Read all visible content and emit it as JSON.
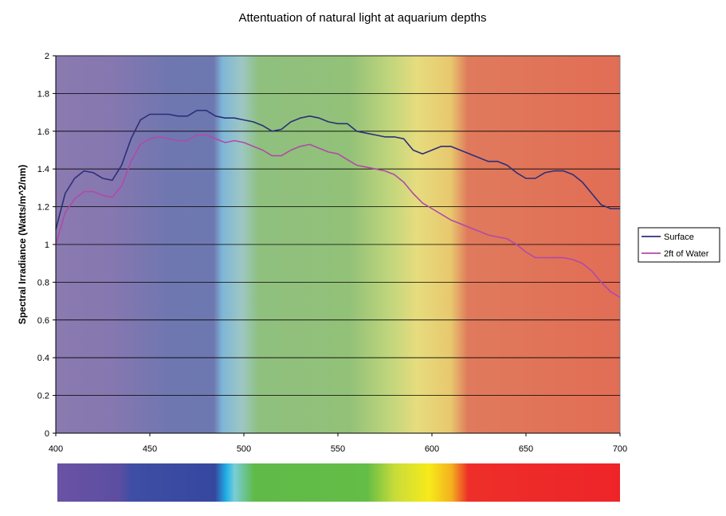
{
  "chart_data": {
    "type": "line",
    "title": "Attentuation of natural light at aquarium depths",
    "xlabel": "",
    "ylabel": "Spectral Irradiance (Watts/m^2/nm)",
    "xlim": [
      400,
      700
    ],
    "ylim": [
      0,
      2
    ],
    "x_ticks": [
      "400",
      "450",
      "500",
      "550",
      "600",
      "650",
      "700"
    ],
    "y_ticks": [
      "0",
      "0.2",
      "0.4",
      "0.6",
      "0.8",
      "1",
      "1.2",
      "1.4",
      "1.6",
      "1.8",
      "2"
    ],
    "grid": "horizontal",
    "legend_position": "right",
    "x": [
      400,
      405,
      410,
      415,
      420,
      425,
      430,
      435,
      440,
      445,
      450,
      455,
      460,
      465,
      470,
      475,
      480,
      485,
      490,
      495,
      500,
      505,
      510,
      515,
      520,
      525,
      530,
      535,
      540,
      545,
      550,
      555,
      560,
      565,
      570,
      575,
      580,
      585,
      590,
      595,
      600,
      605,
      610,
      615,
      620,
      625,
      630,
      635,
      640,
      645,
      650,
      655,
      660,
      665,
      670,
      675,
      680,
      685,
      690,
      695,
      700
    ],
    "series": [
      {
        "name": "Surface",
        "color": "#2b2f7a",
        "values": [
          1.08,
          1.27,
          1.35,
          1.39,
          1.38,
          1.35,
          1.34,
          1.42,
          1.56,
          1.66,
          1.69,
          1.69,
          1.69,
          1.68,
          1.68,
          1.71,
          1.71,
          1.68,
          1.67,
          1.67,
          1.66,
          1.65,
          1.63,
          1.6,
          1.61,
          1.65,
          1.67,
          1.68,
          1.67,
          1.65,
          1.64,
          1.64,
          1.6,
          1.59,
          1.58,
          1.57,
          1.57,
          1.56,
          1.5,
          1.48,
          1.5,
          1.52,
          1.52,
          1.5,
          1.48,
          1.46,
          1.44,
          1.44,
          1.42,
          1.38,
          1.35,
          1.35,
          1.38,
          1.39,
          1.39,
          1.37,
          1.33,
          1.27,
          1.21,
          1.19,
          1.19
        ]
      },
      {
        "name": "2ft of Water",
        "color": "#b04aa8",
        "values": [
          1.0,
          1.17,
          1.24,
          1.28,
          1.28,
          1.26,
          1.25,
          1.31,
          1.44,
          1.53,
          1.56,
          1.57,
          1.56,
          1.55,
          1.55,
          1.58,
          1.58,
          1.56,
          1.54,
          1.55,
          1.54,
          1.52,
          1.5,
          1.47,
          1.47,
          1.5,
          1.52,
          1.53,
          1.51,
          1.49,
          1.48,
          1.45,
          1.42,
          1.41,
          1.4,
          1.39,
          1.37,
          1.33,
          1.27,
          1.22,
          1.19,
          1.16,
          1.13,
          1.11,
          1.09,
          1.07,
          1.05,
          1.04,
          1.03,
          1.0,
          0.96,
          0.93,
          0.93,
          0.93,
          0.93,
          0.92,
          0.9,
          0.86,
          0.8,
          0.75,
          0.72
        ]
      }
    ]
  }
}
